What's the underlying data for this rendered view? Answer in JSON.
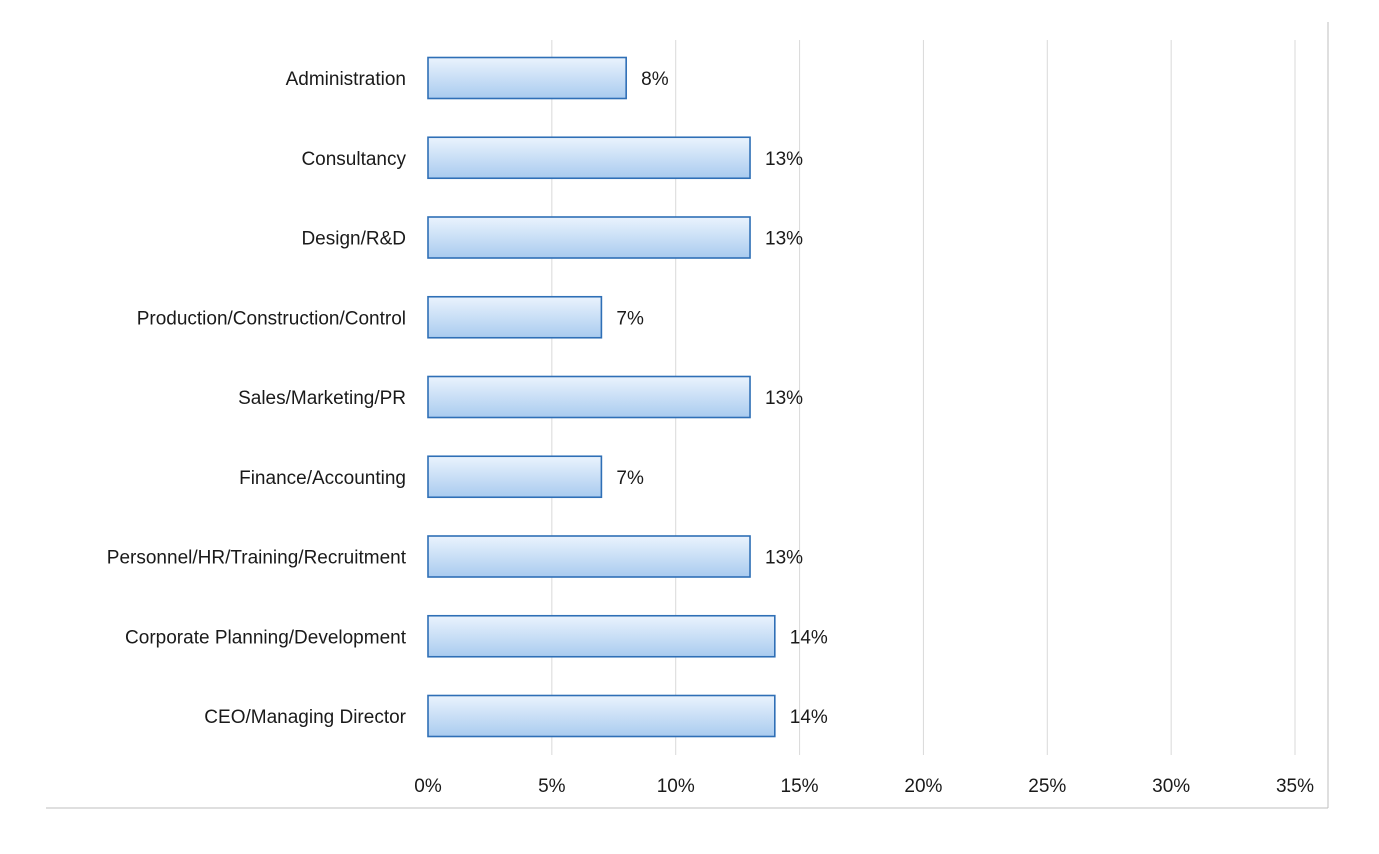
{
  "chart_data": {
    "type": "bar",
    "orientation": "horizontal",
    "categories": [
      "Administration",
      "Consultancy",
      "Design/R&D",
      "Production/Construction/Control",
      "Sales/Marketing/PR",
      "Finance/Accounting",
      "Personnel/HR/Training/Recruitment",
      "Corporate Planning/Development",
      "CEO/Managing Director"
    ],
    "values": [
      8,
      13,
      13,
      7,
      13,
      7,
      13,
      14,
      14
    ],
    "value_labels": [
      "8%",
      "13%",
      "13%",
      "7%",
      "13%",
      "7%",
      "13%",
      "14%",
      "14%"
    ],
    "xlim": [
      0,
      35
    ],
    "xticks": [
      0,
      5,
      10,
      15,
      20,
      25,
      30,
      35
    ],
    "xtick_labels": [
      "0%",
      "5%",
      "10%",
      "15%",
      "20%",
      "25%",
      "30%",
      "35%"
    ],
    "grid": "vertical",
    "legend": "none",
    "title": "",
    "xlabel": "",
    "ylabel": "",
    "colors": {
      "bar_fill_light": "#eaf3fd",
      "bar_fill_dark": "#a9cbef",
      "bar_stroke": "#2f6fb6",
      "grid": "#d9d9d9",
      "text": "#1a1a1a"
    }
  }
}
